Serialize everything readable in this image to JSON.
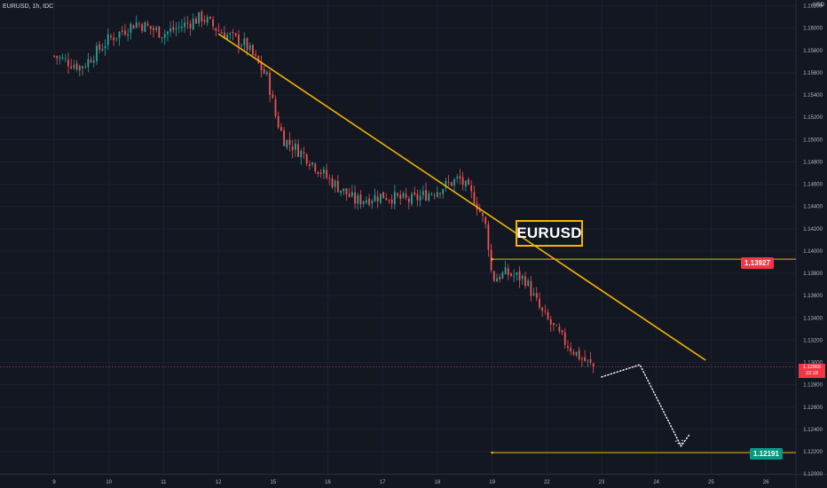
{
  "legend": {
    "symbol": "EURUSD, 1h, IDC"
  },
  "currency": "USD",
  "annotation_title": "EURUSD",
  "resistance_label": "1.13927",
  "support_label": "1.12191",
  "current_price_label": "1.12960",
  "countdown_label": "22:18",
  "colors": {
    "background": "#131722",
    "up_candle": "#26a69a",
    "down_candle": "#ef5350",
    "drawing": "#f4b400",
    "resistance_tag": "#f23645",
    "support_tag": "#089981"
  },
  "chart_data": {
    "type": "candlestick",
    "symbol": "EURUSD",
    "interval": "1h",
    "source": "IDC",
    "y_axis": {
      "ticks": [
        "1.12000",
        "1.12200",
        "1.12400",
        "1.12600",
        "1.12800",
        "1.13000",
        "1.13200",
        "1.13400",
        "1.13600",
        "1.13800",
        "1.14000",
        "1.14200",
        "1.14400",
        "1.14600",
        "1.14800",
        "1.15000",
        "1.15200",
        "1.15400",
        "1.15600",
        "1.15800",
        "1.16000",
        "1.16200"
      ],
      "range": [
        1.11985,
        1.16205
      ]
    },
    "x_axis": {
      "ticks": [
        "9",
        "10",
        "11",
        "12",
        "15",
        "16",
        "17",
        "18",
        "19",
        "22",
        "23",
        "24",
        "25",
        "26"
      ]
    },
    "price_path": [
      {
        "x": 0,
        "y": 1.1575
      },
      {
        "x": 0.5,
        "y": 1.1565
      },
      {
        "x": 1,
        "y": 1.159
      },
      {
        "x": 1.5,
        "y": 1.1605
      },
      {
        "x": 2,
        "y": 1.1595
      },
      {
        "x": 2.7,
        "y": 1.161
      },
      {
        "x": 3,
        "y": 1.1598
      },
      {
        "x": 3.5,
        "y": 1.1585
      },
      {
        "x": 3.9,
        "y": 1.1555
      },
      {
        "x": 4.05,
        "y": 1.152
      },
      {
        "x": 4.2,
        "y": 1.15
      },
      {
        "x": 4.6,
        "y": 1.1485
      },
      {
        "x": 5,
        "y": 1.1465
      },
      {
        "x": 5.5,
        "y": 1.1445
      },
      {
        "x": 6,
        "y": 1.145
      },
      {
        "x": 6.5,
        "y": 1.1445
      },
      {
        "x": 7,
        "y": 1.1455
      },
      {
        "x": 7.4,
        "y": 1.1465
      },
      {
        "x": 7.7,
        "y": 1.1445
      },
      {
        "x": 7.9,
        "y": 1.142
      },
      {
        "x": 8.0,
        "y": 1.1375
      },
      {
        "x": 8.25,
        "y": 1.138
      },
      {
        "x": 8.6,
        "y": 1.1375
      },
      {
        "x": 8.9,
        "y": 1.1345
      },
      {
        "x": 9.3,
        "y": 1.132
      },
      {
        "x": 9.6,
        "y": 1.1305
      },
      {
        "x": 9.85,
        "y": 1.1296
      }
    ],
    "trendline": [
      {
        "x": 3.0,
        "y": 1.1595
      },
      {
        "x": 11.9,
        "y": 1.1302
      }
    ],
    "resistance": {
      "value": 1.13927,
      "x_from": 8.0
    },
    "support": {
      "value": 1.12191,
      "x_from": 8.0
    },
    "current_price": 1.1296,
    "projection_path": [
      {
        "x": 10.0,
        "y": 1.1287
      },
      {
        "x": 10.7,
        "y": 1.1298
      },
      {
        "x": 11.45,
        "y": 1.1225
      },
      {
        "x": 11.6,
        "y": 1.1235
      }
    ]
  }
}
